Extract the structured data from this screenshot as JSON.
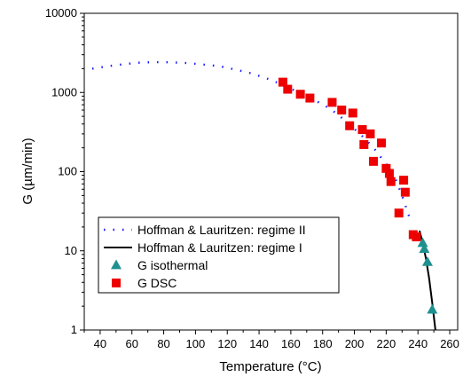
{
  "chart_data": {
    "type": "scatter",
    "xlabel": "Temperature (°C)",
    "ylabel": "G (µm/min)",
    "xlim": [
      30,
      265
    ],
    "ylim": [
      1,
      10000
    ],
    "yscale": "log",
    "grid": false,
    "legend_position": "bottom-left",
    "x_ticks": [
      40,
      60,
      80,
      100,
      120,
      140,
      160,
      180,
      200,
      220,
      240,
      260
    ],
    "x_tick_labels": [
      "40",
      "60",
      "80",
      "100",
      "120",
      "140",
      "160",
      "180",
      "200",
      "220",
      "240",
      "260"
    ],
    "y_ticks": [
      1,
      10,
      100,
      1000,
      10000
    ],
    "y_tick_labels": [
      "1",
      "10",
      "100",
      "1000",
      "10000"
    ],
    "series": [
      {
        "name": "Hoffman & Lauritzen: regime II",
        "style": "dotted-line",
        "color": "#1a1aff",
        "x": [
          35,
          45,
          55,
          65,
          75,
          85,
          95,
          105,
          115,
          125,
          135,
          145,
          155,
          165,
          175,
          185,
          195,
          205,
          212,
          220,
          225,
          230,
          235
        ],
        "y": [
          2000,
          2150,
          2280,
          2380,
          2420,
          2400,
          2350,
          2250,
          2150,
          1950,
          1750,
          1500,
          1250,
          1000,
          800,
          620,
          430,
          280,
          200,
          125,
          90,
          50,
          25
        ]
      },
      {
        "name": "Hoffman & Lauritzen: regime I",
        "style": "solid-line",
        "color": "#000000",
        "x": [
          241,
          243,
          245,
          247,
          249,
          251
        ],
        "y": [
          18,
          12.5,
          8,
          4.5,
          2.2,
          1
        ]
      },
      {
        "name": "G isothermal",
        "style": "triangle-marker",
        "color": "#1f9090",
        "x": [
          243,
          244,
          246,
          249
        ],
        "y": [
          12.5,
          10.5,
          7.2,
          1.8
        ]
      },
      {
        "name": "G DSC",
        "style": "square-marker",
        "color": "#ee0000",
        "x": [
          155,
          158,
          166,
          172,
          186,
          192,
          197,
          199,
          205,
          206,
          210,
          212,
          217,
          220,
          222,
          223,
          228,
          231,
          232,
          237,
          239
        ],
        "y": [
          1350,
          1100,
          950,
          850,
          750,
          600,
          380,
          550,
          340,
          220,
          300,
          135,
          230,
          110,
          95,
          75,
          30,
          78,
          55,
          16,
          15
        ]
      }
    ]
  }
}
